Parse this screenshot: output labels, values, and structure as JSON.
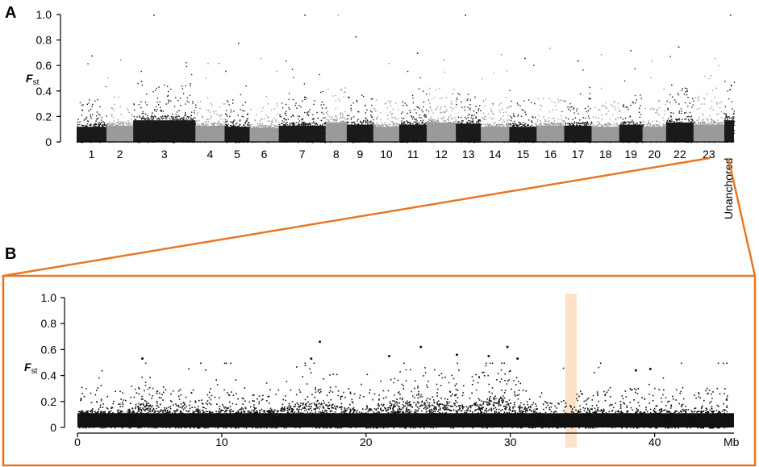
{
  "figure": {
    "panel_a_label": "A",
    "panel_b_label": "B",
    "accent_color": "#E87722",
    "highlight_color": "#FBDDBE"
  },
  "chart_data": [
    {
      "panel": "A",
      "type": "scatter",
      "ylabel_main": "F",
      "ylabel_sub": "st",
      "ylim": [
        0,
        1.0
      ],
      "yticks": [
        "0",
        "0.2",
        "0.4",
        "0.6",
        "0.8",
        "1.0"
      ],
      "grid": false,
      "series_colors": [
        "#1a1a1a",
        "#9a9a9a"
      ],
      "categories": [
        "1",
        "2",
        "3",
        "4",
        "5",
        "6",
        "7",
        "8",
        "9",
        "10",
        "11",
        "12",
        "13",
        "14",
        "15",
        "16",
        "17",
        "18",
        "19",
        "20",
        "22",
        "23",
        "Unanchored"
      ],
      "segment_baseline": [
        0.14,
        0.15,
        0.2,
        0.15,
        0.14,
        0.13,
        0.15,
        0.18,
        0.16,
        0.14,
        0.16,
        0.18,
        0.17,
        0.14,
        0.14,
        0.15,
        0.15,
        0.14,
        0.16,
        0.14,
        0.18,
        0.16,
        0.2
      ],
      "segment_peak": [
        0.68,
        0.65,
        1.0,
        0.62,
        0.78,
        0.66,
        1.0,
        1.0,
        0.83,
        0.62,
        0.7,
        0.65,
        1.0,
        0.69,
        0.66,
        0.74,
        0.64,
        0.69,
        0.72,
        0.64,
        0.75,
        0.66,
        1.0
      ]
    },
    {
      "panel": "B",
      "type": "scatter",
      "ylabel_main": "F",
      "ylabel_sub": "st",
      "xlabel_unit": "Mb",
      "xlim": [
        0,
        45.5
      ],
      "ylim": [
        0,
        1.0
      ],
      "xticks": [
        "0",
        "10",
        "20",
        "30",
        "40"
      ],
      "yticks": [
        "0",
        "0.2",
        "0.4",
        "0.6",
        "0.8",
        "1.0"
      ],
      "grid": false,
      "highlight_region": [
        33.8,
        34.6
      ],
      "peaks": [
        {
          "x": 4.5,
          "y": 0.53
        },
        {
          "x": 16.2,
          "y": 0.53
        },
        {
          "x": 16.8,
          "y": 0.66
        },
        {
          "x": 21.6,
          "y": 0.55
        },
        {
          "x": 23.8,
          "y": 0.62
        },
        {
          "x": 26.3,
          "y": 0.56
        },
        {
          "x": 28.5,
          "y": 0.55
        },
        {
          "x": 29.8,
          "y": 0.62
        },
        {
          "x": 30.5,
          "y": 0.53
        },
        {
          "x": 38.7,
          "y": 0.44
        },
        {
          "x": 39.7,
          "y": 0.45
        }
      ]
    }
  ]
}
